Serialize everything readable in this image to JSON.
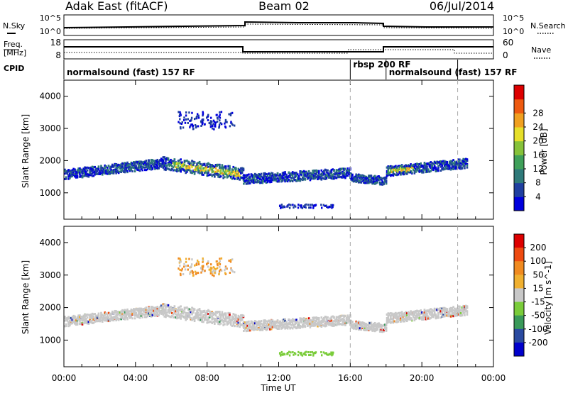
{
  "header": {
    "radar": "Adak East (fitACF)",
    "beam": "Beam 02",
    "date": "06/Jul/2014"
  },
  "labels": {
    "nsky": "N.Sky",
    "nsearch": "N.Search",
    "freq_line1": "Freq.",
    "freq_line2": "[MHz]",
    "nave": "Nave",
    "cpid": "CPID"
  },
  "cpid_segments": [
    {
      "label": "normalsound (fast) 157 RF",
      "start_hour": 0,
      "end_hour": 16
    },
    {
      "label": "rbsp 200 RF",
      "start_hour": 16,
      "end_hour": 18
    },
    {
      "label": "normalsound (fast) 157 RF",
      "start_hour": 18,
      "end_hour": 22
    }
  ],
  "noise_panel": {
    "left_ticks": [
      "10^5",
      "10^0"
    ],
    "right_ticks": [
      "10^5",
      "10^0"
    ]
  },
  "freq_panel": {
    "left_ticks": [
      "18",
      "8"
    ],
    "right_ticks": [
      "60",
      "0"
    ]
  },
  "chart_data": [
    {
      "type": "heatmap",
      "panel": "power",
      "ylabel": "Slant Range [km]",
      "yticks": [
        1000,
        2000,
        3000,
        4000
      ],
      "ylim": [
        180,
        4500
      ],
      "colorbar": {
        "label": "Power [dB]",
        "ticks": [
          "4",
          "8",
          "12",
          "16",
          "20",
          "24",
          "28"
        ],
        "range": [
          0,
          30
        ],
        "colors": [
          "#0000dd",
          "#1f3fa0",
          "#2f7a7a",
          "#3fa05a",
          "#86c23a",
          "#e6df2a",
          "#f0a020",
          "#ee5a10",
          "#dd0000"
        ]
      },
      "scatter_bands": [
        {
          "start_hour": 0.0,
          "end_hour": 5.5,
          "range_start_km": 1600,
          "range_end_km": 1950,
          "thickness_km": 300
        },
        {
          "start_hour": 5.5,
          "end_hour": 10.0,
          "range_start_km": 1950,
          "range_end_km": 1600,
          "thickness_km": 400
        },
        {
          "start_hour": 10.0,
          "end_hour": 16.0,
          "range_start_km": 1450,
          "range_end_km": 1650,
          "thickness_km": 300
        },
        {
          "start_hour": 16.0,
          "end_hour": 18.0,
          "range_start_km": 1500,
          "range_end_km": 1400,
          "thickness_km": 250
        },
        {
          "start_hour": 18.0,
          "end_hour": 22.5,
          "range_start_km": 1700,
          "range_end_km": 1950,
          "thickness_km": 300
        }
      ]
    },
    {
      "type": "heatmap",
      "panel": "velocity",
      "xlabel": "Time UT",
      "xticks": [
        "00:00",
        "04:00",
        "08:00",
        "12:00",
        "16:00",
        "20:00",
        "00:00"
      ],
      "xlim": [
        0,
        24
      ],
      "ylabel": "Slant Range [km]",
      "yticks": [
        1000,
        2000,
        3000,
        4000
      ],
      "ylim": [
        180,
        4500
      ],
      "colorbar": {
        "label": "Velocity [m s^-1]",
        "ticks": [
          "200",
          "100",
          "50",
          "15",
          "-15",
          "-50",
          "-100",
          "-200"
        ],
        "range": [
          -250,
          250
        ],
        "colors": [
          "#dd0000",
          "#ee4a10",
          "#f08a20",
          "#f0b030",
          "#c8c8c8",
          "#7acc3a",
          "#3a9a5a",
          "#2a4aa0",
          "#0000cc"
        ]
      },
      "dominant_value": "-15 to 15 (ground scatter)"
    }
  ]
}
